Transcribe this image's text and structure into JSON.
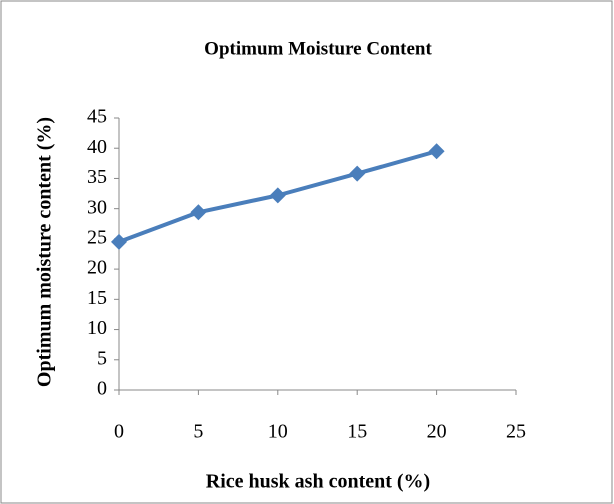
{
  "chart_data": {
    "type": "line",
    "title": "Optimum Moisture Content",
    "xlabel": "Rice husk ash content (%)",
    "ylabel": "Optimum moisture content (%)",
    "x": [
      0,
      5,
      10,
      15,
      20
    ],
    "series": [
      {
        "name": "Optimum moisture content",
        "color": "#4a7ebb",
        "values": [
          24.5,
          29.4,
          32.2,
          35.8,
          39.5
        ]
      }
    ],
    "xlim": [
      0,
      25
    ],
    "xticks": [
      0,
      5,
      10,
      15,
      20,
      25
    ],
    "ylim": [
      0,
      45
    ],
    "yticks": [
      0,
      5,
      10,
      15,
      20,
      25,
      30,
      35,
      40,
      45
    ],
    "grid": false,
    "legend": false
  }
}
